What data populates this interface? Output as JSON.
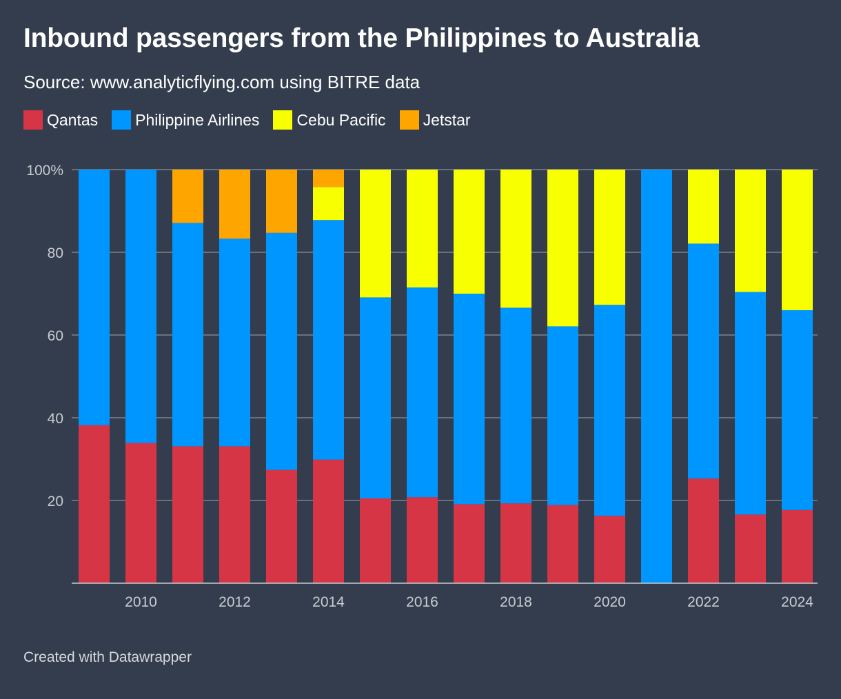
{
  "title": "Inbound passengers from the Philippines to Australia",
  "subtitle": "Source: www.analyticflying.com using BITRE data",
  "footer": "Created with Datawrapper",
  "legend": [
    {
      "label": "Qantas",
      "color": "#d63545"
    },
    {
      "label": "Philippine Airlines",
      "color": "#0096ff"
    },
    {
      "label": "Cebu Pacific",
      "color": "#f8ff00"
    },
    {
      "label": "Jetstar",
      "color": "#ffa500"
    }
  ],
  "chart_data": {
    "type": "bar",
    "stacked": true,
    "years": [
      2009,
      2010,
      2011,
      2012,
      2013,
      2014,
      2015,
      2016,
      2017,
      2018,
      2019,
      2020,
      2021,
      2022,
      2023,
      2024
    ],
    "x_tick_labels": [
      "2010",
      "2012",
      "2014",
      "2016",
      "2018",
      "2020",
      "2022",
      "2024"
    ],
    "y_tick_labels": [
      "20",
      "40",
      "60",
      "80",
      "100%"
    ],
    "y_ticks": [
      20,
      40,
      60,
      80,
      100
    ],
    "ylim": [
      0,
      100
    ],
    "grid": true,
    "legend_position": "top-left",
    "series": [
      {
        "name": "Qantas",
        "color": "#d63545",
        "values": [
          38.2,
          33.9,
          33.1,
          33.1,
          27.4,
          29.9,
          20.5,
          20.8,
          19.1,
          19.3,
          18.9,
          16.3,
          0,
          25.3,
          16.6,
          17.7
        ]
      },
      {
        "name": "Philippine Airlines",
        "color": "#0096ff",
        "values": [
          61.8,
          66.1,
          54.0,
          50.2,
          57.3,
          57.9,
          48.6,
          50.7,
          50.9,
          47.3,
          43.2,
          51.0,
          100,
          56.8,
          53.8,
          48.3
        ]
      },
      {
        "name": "Cebu Pacific",
        "color": "#f8ff00",
        "values": [
          0,
          0,
          0,
          0,
          0,
          8.0,
          30.9,
          28.5,
          30.0,
          33.4,
          37.9,
          32.7,
          0,
          17.9,
          29.6,
          34.0
        ]
      },
      {
        "name": "Jetstar",
        "color": "#ffa500",
        "values": [
          0,
          0,
          12.9,
          16.7,
          15.3,
          4.2,
          0,
          0,
          0,
          0,
          0,
          0,
          0,
          0,
          0,
          0
        ]
      }
    ]
  }
}
